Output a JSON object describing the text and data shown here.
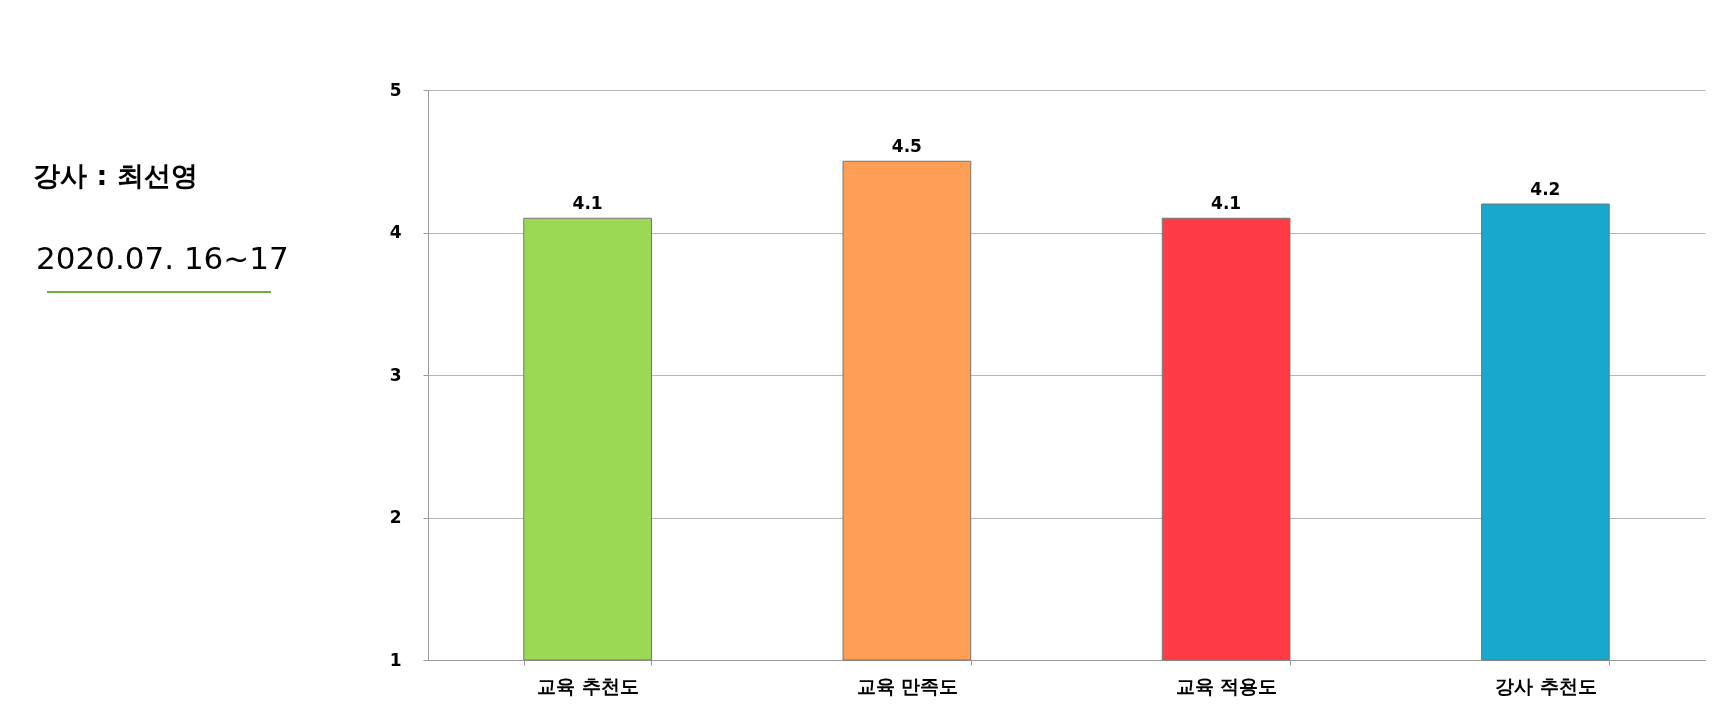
{
  "chart_data": {
    "type": "bar",
    "title": "강사 : 최선영",
    "subtitle": "2020.07. 16~17",
    "categories": [
      "교육 추천도",
      "교육 만족도",
      "교육 적용도",
      "강사 추천도"
    ],
    "values": [
      4.1,
      4.5,
      4.1,
      4.2
    ],
    "colors": [
      "#9bd854",
      "#ff9f55",
      "#ff3c46",
      "#17a8cc"
    ],
    "ylim": [
      1,
      5
    ],
    "yticks": [
      1,
      2,
      3,
      4,
      5
    ],
    "grid": "y",
    "data_labels": true
  }
}
